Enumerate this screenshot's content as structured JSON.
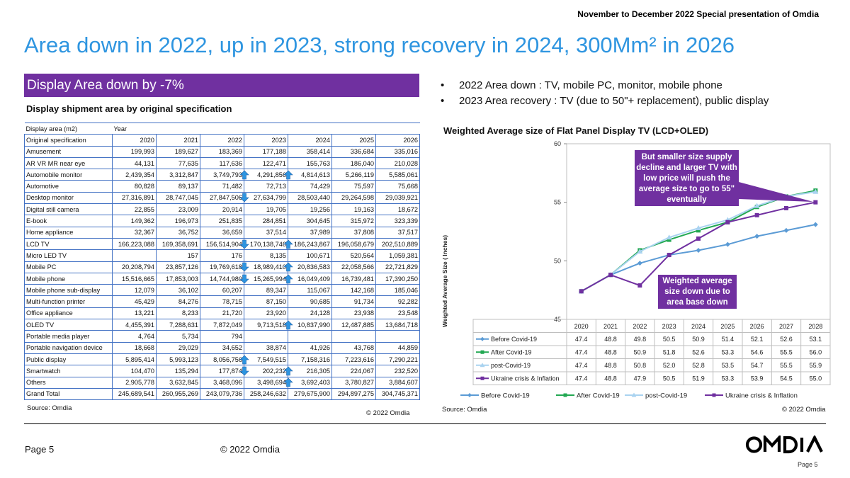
{
  "header": {
    "top_note": "November to December 2022 Special presentation of Omdia",
    "title": "Area down in 2022, up in 2023, strong recovery in 2024, 300Mm² in 2026"
  },
  "left": {
    "section_bar": "Display Area down by -7%",
    "table_title": "Display shipment area by original specification",
    "table": {
      "corner_label": "Display area (m2)",
      "year_label": "Year",
      "spec_label": "Original specification",
      "years": [
        "2020",
        "2021",
        "2022",
        "2023",
        "2024",
        "2025",
        "2026"
      ],
      "rows": [
        {
          "name": "Amusement",
          "values": [
            "199,993",
            "189,627",
            "183,369",
            "177,188",
            "358,414",
            "336,684",
            "335,016"
          ]
        },
        {
          "name": "AR VR MR near eye",
          "values": [
            "44,131",
            "77,635",
            "117,636",
            "122,471",
            "155,763",
            "186,040",
            "210,028"
          ]
        },
        {
          "name": "Automobile monitor",
          "values": [
            "2,439,354",
            "3,312,847",
            "3,749,793",
            "4,291,856",
            "4,814,613",
            "5,266,119",
            "5,585,061"
          ]
        },
        {
          "name": "Automotive",
          "values": [
            "80,828",
            "89,137",
            "71,482",
            "72,713",
            "74,429",
            "75,597",
            "75,668"
          ]
        },
        {
          "name": "Desktop monitor",
          "values": [
            "27,316,891",
            "28,747,045",
            "27,847,506",
            "27,634,799",
            "28,503,440",
            "29,264,598",
            "29,039,921"
          ]
        },
        {
          "name": "Digital still camera",
          "values": [
            "22,855",
            "23,009",
            "20,914",
            "19,705",
            "19,256",
            "19,163",
            "18,672"
          ]
        },
        {
          "name": "E-book",
          "values": [
            "149,362",
            "196,973",
            "251,835",
            "284,851",
            "304,645",
            "315,972",
            "323,339"
          ]
        },
        {
          "name": "Home appliance",
          "values": [
            "32,367",
            "36,752",
            "36,659",
            "37,514",
            "37,989",
            "37,808",
            "37,517"
          ]
        },
        {
          "name": "LCD TV",
          "values": [
            "166,223,088",
            "169,358,691",
            "156,514,904",
            "170,138,746",
            "186,243,867",
            "196,058,679",
            "202,510,889"
          ]
        },
        {
          "name": "Micro LED TV",
          "values": [
            "",
            "157",
            "176",
            "8,135",
            "100,671",
            "520,564",
            "1,059,381"
          ]
        },
        {
          "name": "Mobile PC",
          "values": [
            "20,208,794",
            "23,857,126",
            "19,769,618",
            "18,989,410",
            "20,836,583",
            "22,058,566",
            "22,721,829"
          ]
        },
        {
          "name": "Mobile phone",
          "values": [
            "15,516,665",
            "17,853,003",
            "14,744,980",
            "15,265,994",
            "16,049,409",
            "16,739,481",
            "17,390,250"
          ]
        },
        {
          "name": "Mobile phone sub-display",
          "values": [
            "12,079",
            "36,102",
            "60,207",
            "89,347",
            "115,067",
            "142,168",
            "185,046"
          ]
        },
        {
          "name": "Multi-function printer",
          "values": [
            "45,429",
            "84,276",
            "78,715",
            "87,150",
            "90,685",
            "91,734",
            "92,282"
          ]
        },
        {
          "name": "Office appliance",
          "values": [
            "13,221",
            "8,233",
            "21,720",
            "23,920",
            "24,128",
            "23,938",
            "23,548"
          ]
        },
        {
          "name": "OLED TV",
          "values": [
            "4,455,391",
            "7,288,631",
            "7,872,049",
            "9,713,518",
            "10,837,990",
            "12,487,885",
            "13,684,718"
          ]
        },
        {
          "name": "Portable media player",
          "values": [
            "4,764",
            "5,734",
            "794",
            "",
            "",
            "",
            ""
          ]
        },
        {
          "name": "Portable navigation device",
          "values": [
            "18,668",
            "29,029",
            "34,652",
            "38,874",
            "41,926",
            "43,768",
            "44,859"
          ]
        },
        {
          "name": "Public display",
          "values": [
            "5,895,414",
            "5,993,123",
            "8,056,756",
            "7,549,515",
            "7,158,316",
            "7,223,616",
            "7,290,221"
          ]
        },
        {
          "name": "Smartwatch",
          "values": [
            "104,470",
            "135,294",
            "177,874",
            "202,232",
            "216,305",
            "224,067",
            "232,520"
          ]
        },
        {
          "name": "Others",
          "values": [
            "2,905,778",
            "3,632,845",
            "3,468,096",
            "3,498,694",
            "3,692,403",
            "3,780,827",
            "3,884,607"
          ]
        },
        {
          "name": "Grand Total",
          "values": [
            "245,689,541",
            "260,955,269",
            "243,079,736",
            "258,246,632",
            "279,675,900",
            "294,897,275",
            "304,745,371"
          ]
        }
      ]
    },
    "source": "Source: Omdia",
    "copyright": "© 2022 Omdia"
  },
  "right": {
    "bullets": [
      "2022 Area down : TV, mobile PC, monitor, mobile phone",
      "2023 Area recovery : TV (due to 50\"+ replacement), public display"
    ],
    "callout_top": [
      "But smaller size supply",
      "decline and larger TV with",
      "low price will push the",
      "average size to go to 55\"",
      "eventually"
    ],
    "callout_bottom": [
      "Weighted average",
      "size down due to",
      "area base down"
    ],
    "source": "Source: Omdia",
    "copyright": "© 2022 Omdia"
  },
  "chart_data": {
    "type": "line",
    "title": "Weighted Average size of Flat Panel Display TV (LCD+OLED)",
    "ylabel": "Weighted Average Size  ( Inches)",
    "ylim": [
      45,
      60
    ],
    "yticks": [
      "45",
      "50",
      "55",
      "60"
    ],
    "x": [
      "2020",
      "2021",
      "2022",
      "2023",
      "2024",
      "2025",
      "2026",
      "2027",
      "2028"
    ],
    "legend_position": "bottom",
    "series": [
      {
        "name": "Before Covid-19",
        "color": "#5b9bd5",
        "marker": "diamond",
        "values": [
          47.4,
          48.8,
          49.8,
          50.5,
          50.9,
          51.4,
          52.1,
          52.6,
          53.1
        ],
        "labels": [
          "47.4",
          "48.8",
          "49.8",
          "50.5",
          "50.9",
          "51.4",
          "52.1",
          "52.6",
          "53.1"
        ]
      },
      {
        "name": "After Covid-19",
        "color": "#22a852",
        "marker": "square",
        "values": [
          47.4,
          48.8,
          50.9,
          51.8,
          52.6,
          53.3,
          54.6,
          55.5,
          56.0
        ],
        "labels": [
          "47.4",
          "48.8",
          "50.9",
          "51.8",
          "52.6",
          "53.3",
          "54.6",
          "55.5",
          "56.0"
        ]
      },
      {
        "name": "post-Covid-19",
        "color": "#a9d3f0",
        "marker": "triangle",
        "values": [
          47.4,
          48.8,
          50.8,
          52.0,
          52.8,
          53.5,
          54.7,
          55.5,
          55.9
        ],
        "labels": [
          "47.4",
          "48.8",
          "50.8",
          "52.0",
          "52.8",
          "53.5",
          "54.7",
          "55.5",
          "55.9"
        ]
      },
      {
        "name": "Ukraine crisis & Inflation",
        "color": "#7030a0",
        "marker": "square",
        "values": [
          47.4,
          48.8,
          47.9,
          50.5,
          51.9,
          53.3,
          53.9,
          54.5,
          55.0
        ],
        "labels": [
          "47.4",
          "48.8",
          "47.9",
          "50.5",
          "51.9",
          "53.3",
          "53.9",
          "54.5",
          "55.0"
        ]
      }
    ]
  },
  "footer": {
    "page_left": "Page 5",
    "copyright": "© 2022 Omdia",
    "logo_text": "OMDIA",
    "page_right": "Page 5"
  },
  "colors": {
    "title_blue": "#2e95e0",
    "purple": "#7030a0",
    "table_border": "#4472c4",
    "arrow_blue": "#2e95e0"
  }
}
